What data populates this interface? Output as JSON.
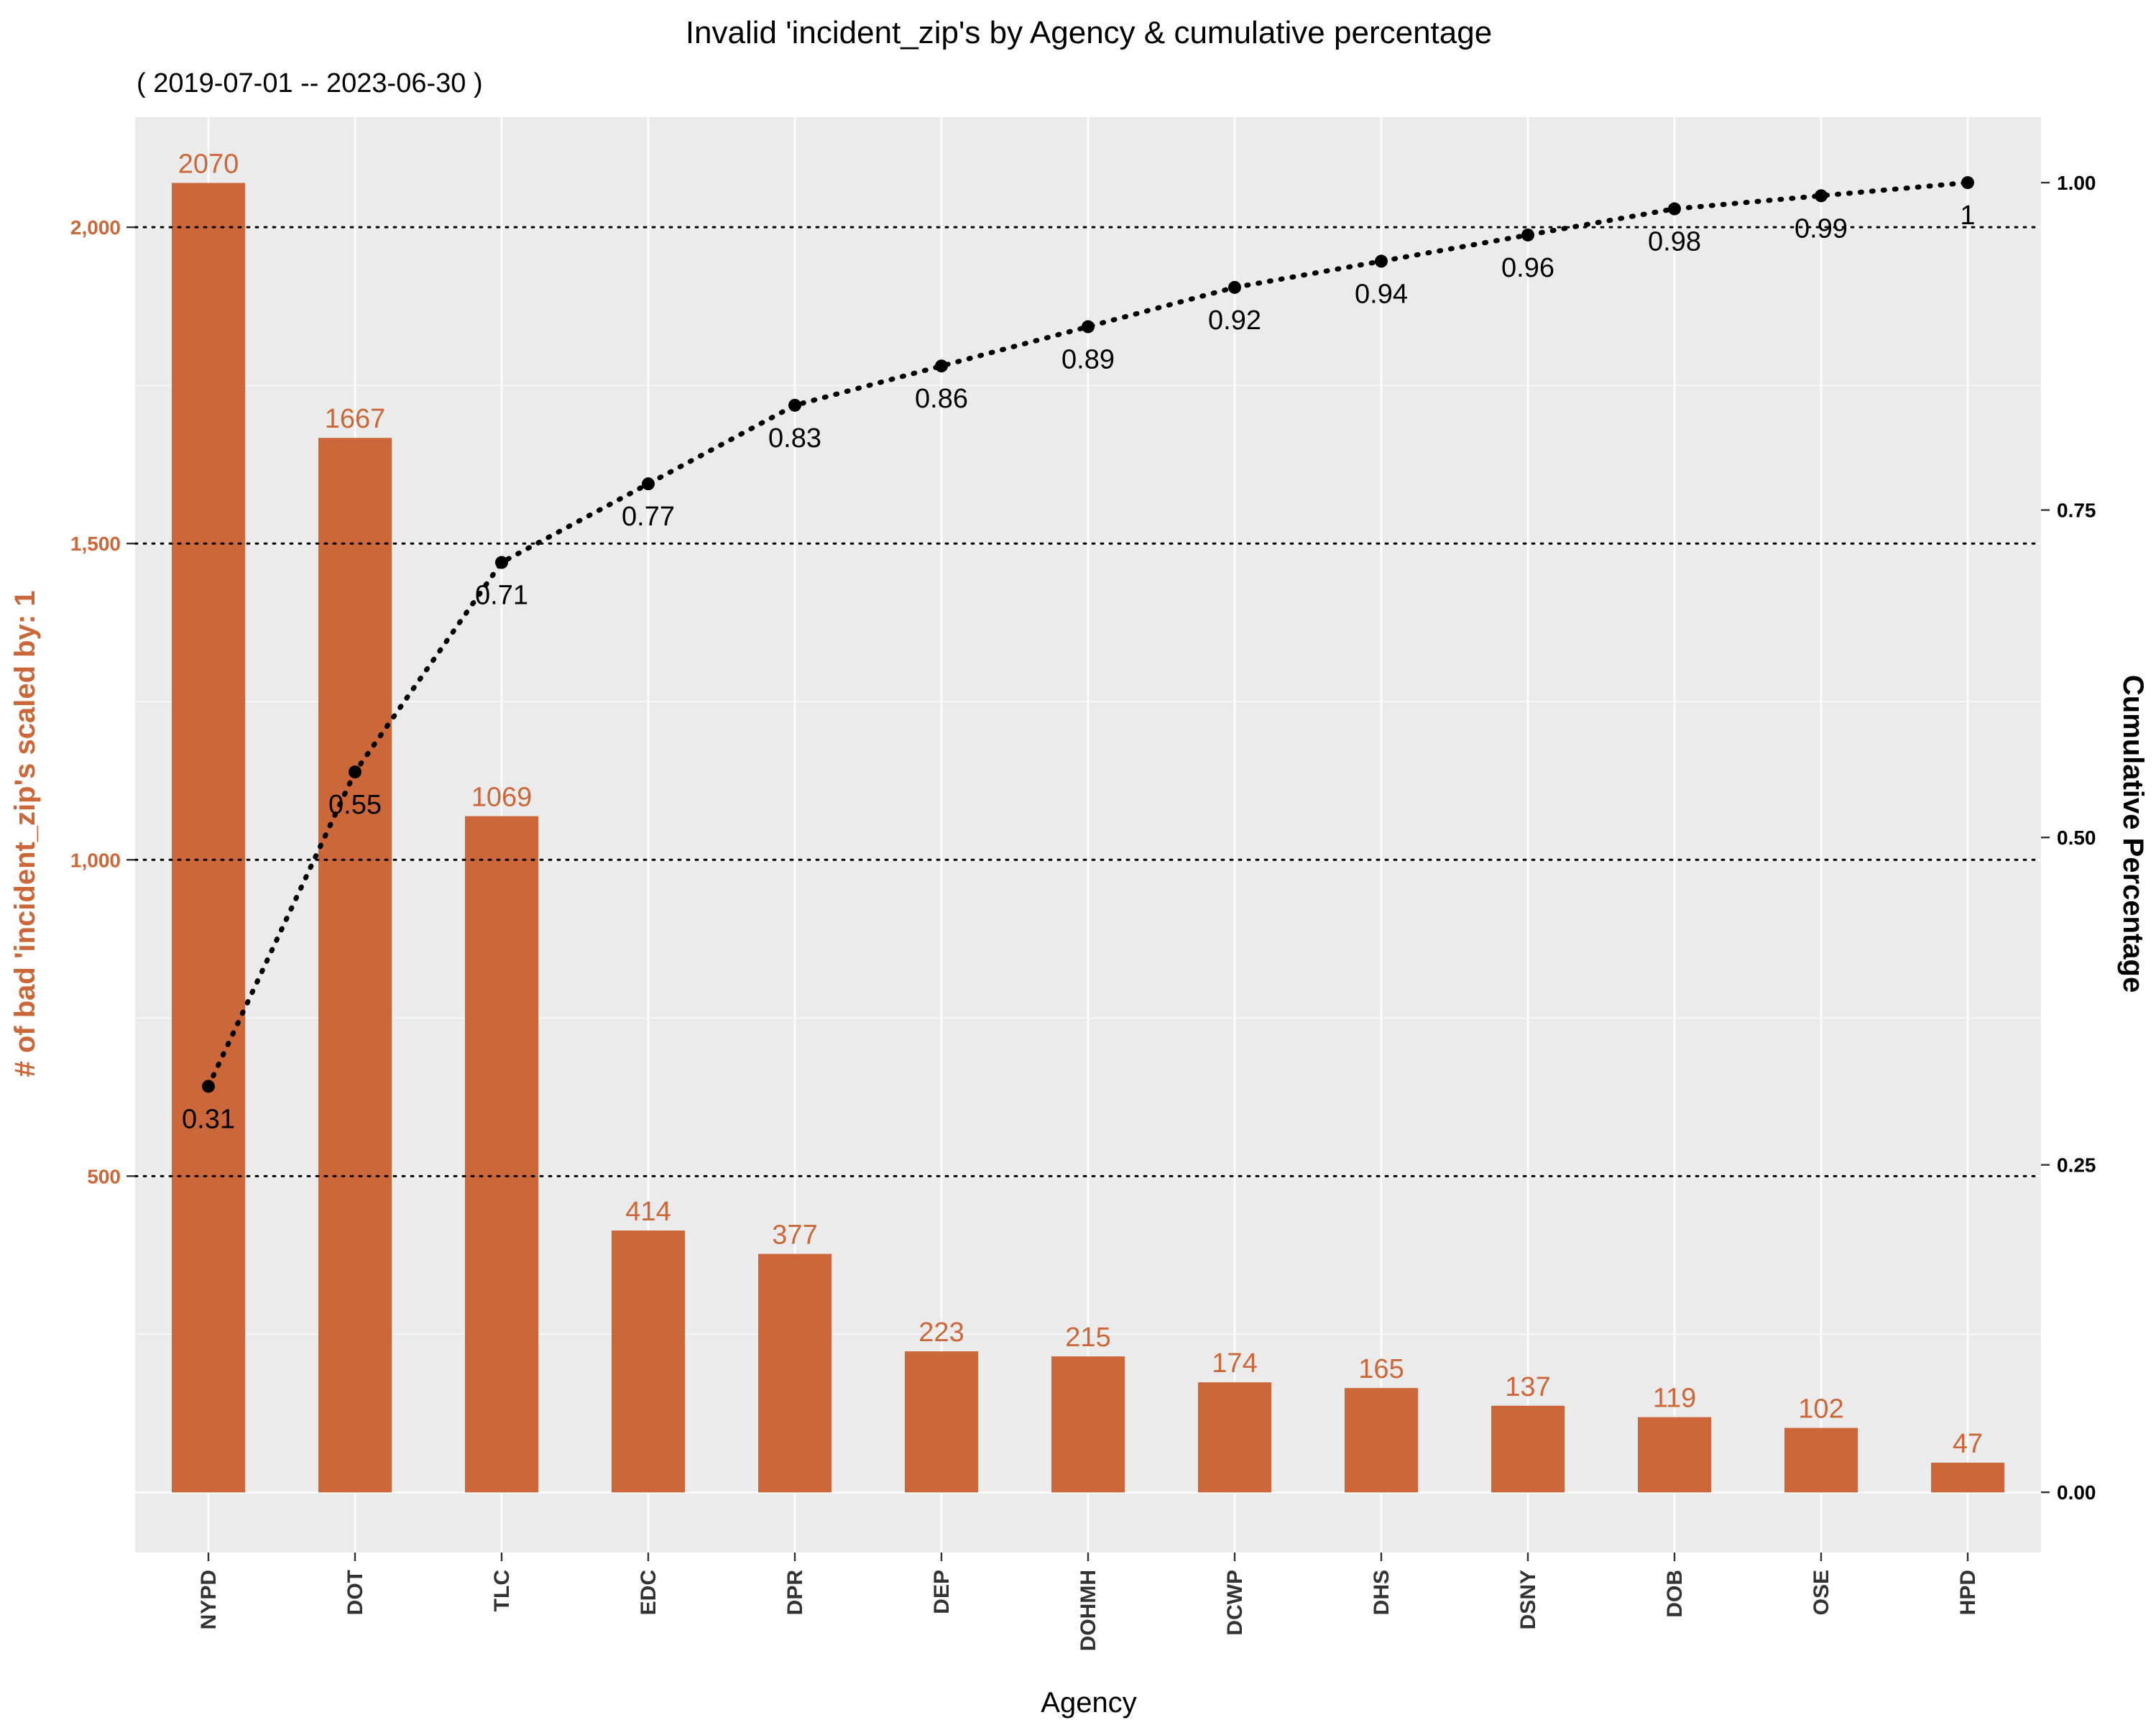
{
  "chart_data": {
    "type": "bar",
    "title": "Invalid 'incident_zip's by Agency & cumulative percentage",
    "subtitle": "( 2019-07-01 -- 2023-06-30 )",
    "xlabel": "Agency",
    "ylabel": "# of bad 'incident_zip's scaled by: 1",
    "y2label": "Cumulative Percentage",
    "categories": [
      "NYPD",
      "DOT",
      "TLC",
      "EDC",
      "DPR",
      "DEP",
      "DOHMH",
      "DCWP",
      "DHS",
      "DSNY",
      "DOB",
      "OSE",
      "HPD"
    ],
    "series": [
      {
        "name": "",
        "type": "bar",
        "axis": "left",
        "values": [
          2070,
          1667,
          1069,
          414,
          377,
          223,
          215,
          174,
          165,
          137,
          119,
          102,
          47
        ]
      },
      {
        "name": "",
        "type": "line",
        "axis": "right",
        "values": [
          0.31,
          0.55,
          0.71,
          0.77,
          0.83,
          0.86,
          0.89,
          0.92,
          0.94,
          0.96,
          0.98,
          0.99,
          1.0
        ],
        "labels": [
          "0.31",
          "0.55",
          "0.71",
          "0.77",
          "0.83",
          "0.86",
          "0.89",
          "0.92",
          "0.94",
          "0.96",
          "0.98",
          "0.99",
          "1"
        ]
      }
    ],
    "bar_labels": [
      "2070",
      "1667",
      "1069",
      "414",
      "377",
      "223",
      "215",
      "174",
      "165",
      "137",
      "119",
      "102",
      "47"
    ],
    "ylim": [
      -95,
      2174
    ],
    "y2lim": [
      -0.046,
      1.05
    ],
    "yticks": [
      {
        "value": 500,
        "label": "500"
      },
      {
        "value": 1000,
        "label": "1,000"
      },
      {
        "value": 1500,
        "label": "1,500"
      },
      {
        "value": 2000,
        "label": "2,000"
      }
    ],
    "y2ticks": [
      {
        "value": 0,
        "label": "0.00"
      },
      {
        "value": 0.25,
        "label": "0.25"
      },
      {
        "value": 0.5,
        "label": "0.50"
      },
      {
        "value": 0.75,
        "label": "0.75"
      },
      {
        "value": 1.0,
        "label": "1.00"
      }
    ],
    "grid": true,
    "colors": {
      "bar": "#CC6739",
      "panel": "#EBEBEB",
      "grid": "#FFFFFF",
      "line": "#000000"
    }
  }
}
